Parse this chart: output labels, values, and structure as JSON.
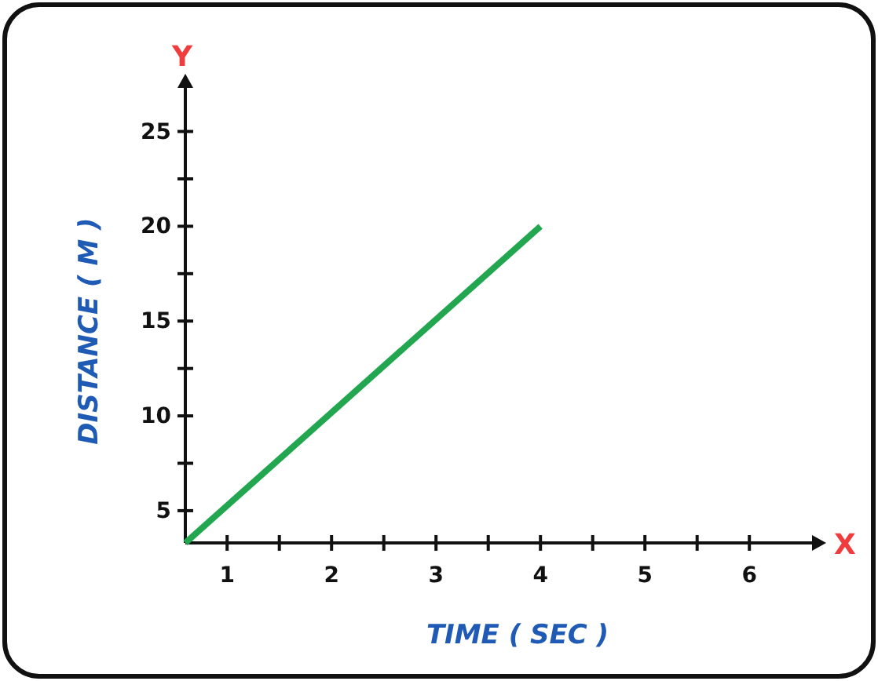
{
  "chart_data": {
    "type": "line",
    "xlabel": "TIME ( SEC )",
    "ylabel": "DISTANCE ( M )",
    "annotations": [
      "X",
      "Y"
    ],
    "x": [
      0.6,
      4
    ],
    "series": [
      {
        "color": "#22a650",
        "values": [
          3.3,
          20
        ]
      }
    ],
    "xlim": [
      0.6,
      6.6
    ],
    "ylim": [
      3.3,
      27.3
    ],
    "xticks": [
      1,
      {
        "value": 1.5,
        "label": null
      },
      2,
      {
        "value": 2.5,
        "label": null
      },
      3,
      {
        "value": 3.5,
        "label": null
      },
      4,
      {
        "value": 4.5,
        "label": null
      },
      5,
      {
        "value": 5.5,
        "label": null
      },
      6
    ],
    "yticks": [
      5,
      {
        "value": 7.5,
        "label": null
      },
      10,
      {
        "value": 12.5,
        "label": null
      },
      15,
      {
        "value": 17.5,
        "label": null
      },
      20,
      {
        "value": 22.5,
        "label": null
      },
      25
    ],
    "grid": false,
    "marker": "none",
    "line_style": "solid"
  }
}
